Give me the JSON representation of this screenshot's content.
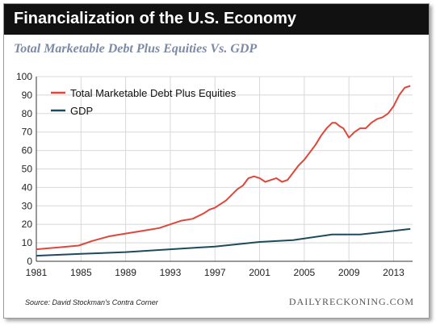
{
  "header": {
    "title": "Financialization of the U.S. Economy"
  },
  "colors": {
    "debt": "#e0463a",
    "gdp": "#1d4a5c",
    "header_bg": "#111111"
  },
  "chart_data": {
    "type": "line",
    "title": "Total Marketable Debt Plus Equities Vs. GDP",
    "xlabel": "",
    "ylabel": "",
    "xlim": [
      1981,
      2014.7
    ],
    "ylim": [
      0,
      100
    ],
    "x_ticks": [
      "1981",
      "1985",
      "1989",
      "1993",
      "1997",
      "2001",
      "2005",
      "2009",
      "2013"
    ],
    "y_ticks": [
      "0",
      "10",
      "20",
      "30",
      "40",
      "50",
      "60",
      "70",
      "80",
      "90",
      "100"
    ],
    "grid": true,
    "legend_position": "top-left",
    "series": [
      {
        "name": "Total Marketable Debt Plus Equities",
        "color": "#e0463a",
        "x": [
          1981,
          1983,
          1984.8,
          1986,
          1987.5,
          1988,
          1990,
          1991,
          1992,
          1993,
          1994,
          1995,
          1996,
          1996.5,
          1997,
          1998,
          1998.5,
          1999,
          1999.5,
          2000,
          2000.5,
          2001,
          2001.5,
          2002,
          2002.5,
          2003,
          2003.5,
          2004,
          2004.5,
          2005,
          2005.5,
          2006,
          2006.5,
          2007,
          2007.5,
          2007.8,
          2008.2,
          2008.5,
          2009,
          2009.5,
          2010,
          2010.5,
          2011,
          2011.5,
          2012,
          2012.5,
          2013,
          2013.5,
          2014,
          2014.5
        ],
        "y": [
          6.5,
          7.5,
          8.5,
          11,
          13.5,
          14,
          16,
          17,
          18,
          20,
          22,
          23,
          26,
          28,
          29,
          33,
          36,
          39,
          41,
          45,
          46,
          45,
          43,
          44,
          45,
          43,
          44,
          48,
          52,
          55,
          59,
          63,
          68,
          72,
          75,
          75,
          73,
          72,
          67,
          70,
          72,
          72,
          75,
          77,
          78,
          80,
          84,
          90,
          94,
          95
        ]
      },
      {
        "name": "GDP",
        "color": "#1d4a5c",
        "x": [
          1981,
          1985,
          1989,
          1993,
          1997,
          2001,
          2004,
          2007.5,
          2009,
          2010,
          2013,
          2014.5
        ],
        "y": [
          3,
          4,
          5,
          6.5,
          8,
          10.5,
          11.5,
          14.5,
          14.5,
          14.5,
          16.5,
          17.5
        ]
      }
    ]
  },
  "footer": {
    "source": "Source: David Stockman's Contra Corner",
    "brand": "DAILYRECKONING.COM"
  }
}
